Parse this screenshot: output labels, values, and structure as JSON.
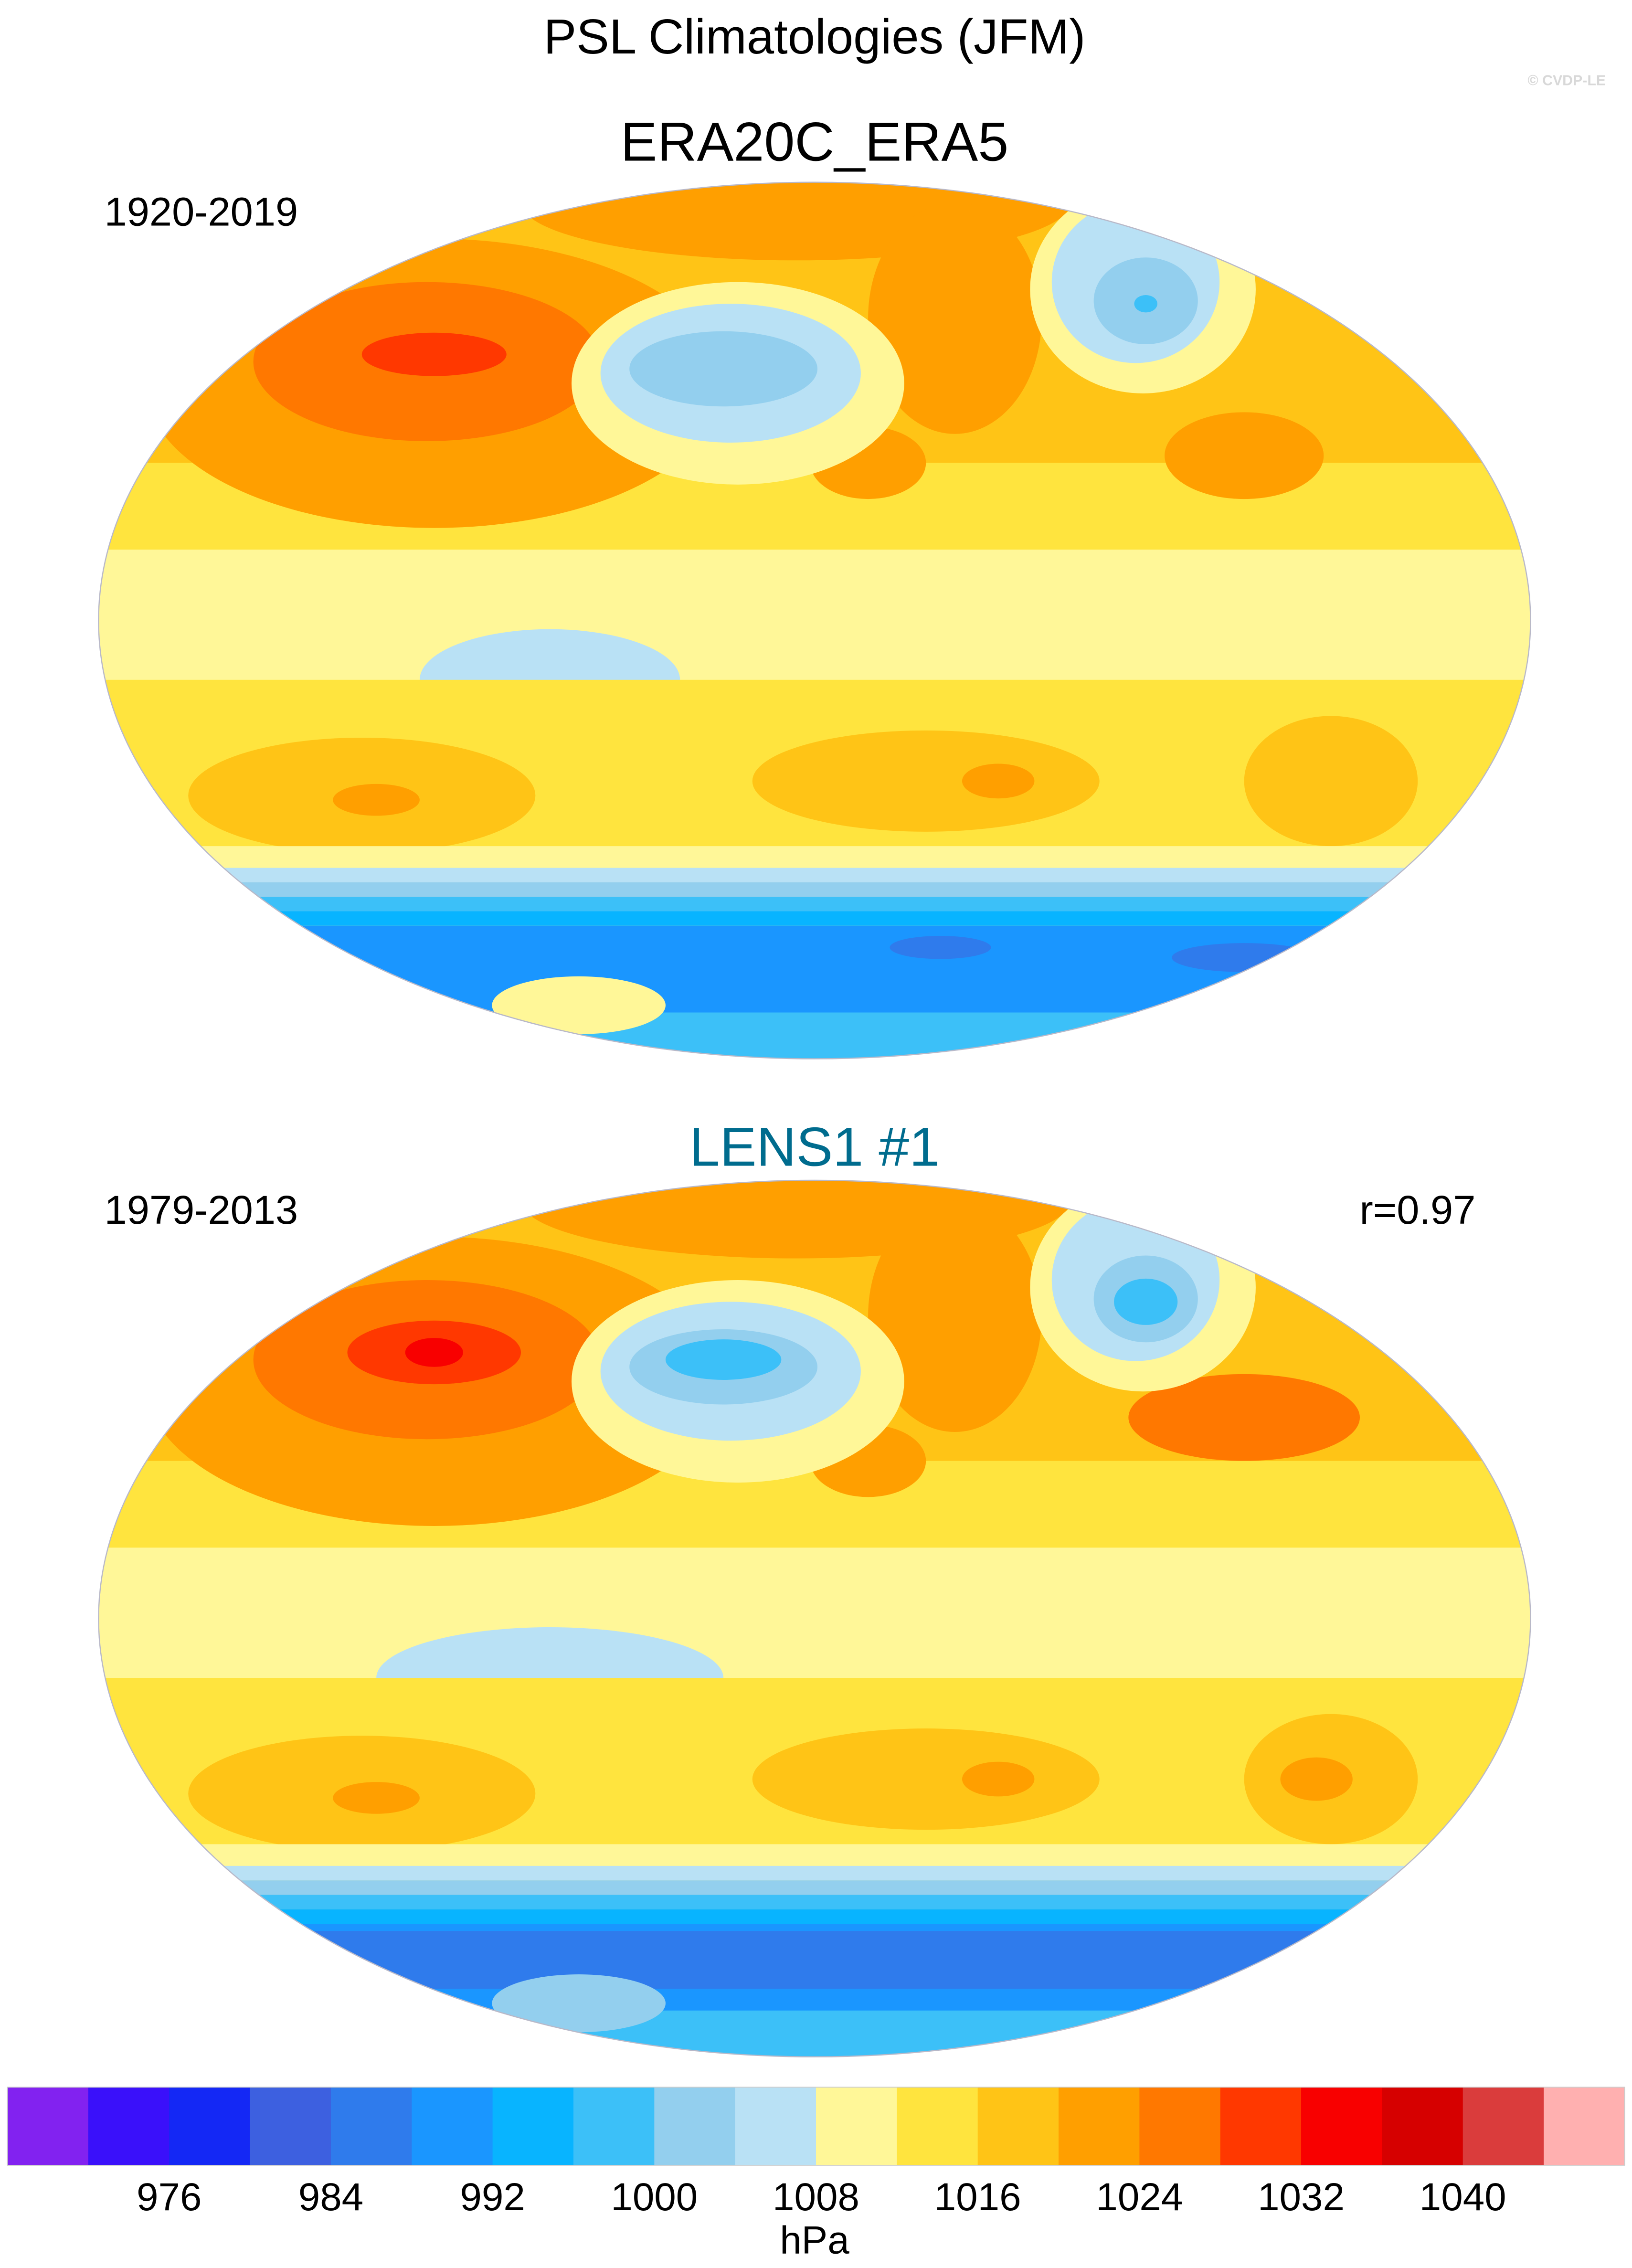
{
  "header": {
    "title": "PSL Climatologies (JFM)",
    "watermark": "© CVDP-LE"
  },
  "panels": [
    {
      "title": "ERA20C_ERA5",
      "period": "1920-2019",
      "stat": "",
      "title_color": "#000000"
    },
    {
      "title": "LENS1 #1",
      "period": "1979-2013",
      "stat": "r=0.97",
      "title_color": "#006c8e"
    }
  ],
  "chart_data": {
    "type": "heatmap",
    "title": "PSL Climatologies (JFM)",
    "projection": "global map, elliptical (Robinson-like)",
    "panels": [
      {
        "title": "ERA20C_ERA5",
        "period": "1920-2019"
      },
      {
        "title": "LENS1 #1",
        "period": "1979-2013",
        "pattern_correlation": 0.97
      }
    ],
    "colorbar": {
      "units": "hPa",
      "levels": [
        972,
        976,
        980,
        984,
        988,
        992,
        996,
        1000,
        1004,
        1008,
        1012,
        1016,
        1020,
        1024,
        1028,
        1032,
        1036,
        1040
      ],
      "tick_labels": [
        "976",
        "984",
        "992",
        "1000",
        "1008",
        "1016",
        "1024",
        "1032",
        "1040"
      ],
      "colors": [
        "#8222f0",
        "#3a10fa",
        "#1428f5",
        "#3d60e0",
        "#2f7bec",
        "#1a96ff",
        "#08b4ff",
        "#3cc0f8",
        "#93cfee",
        "#b9e1f5",
        "#fff798",
        "#ffe43e",
        "#ffc416",
        "#ff9f00",
        "#ff7800",
        "#ff3800",
        "#f80000",
        "#d60000",
        "#da3c3c",
        "#ffb0b0"
      ],
      "orientation": "horizontal",
      "placement": "bottom"
    }
  }
}
